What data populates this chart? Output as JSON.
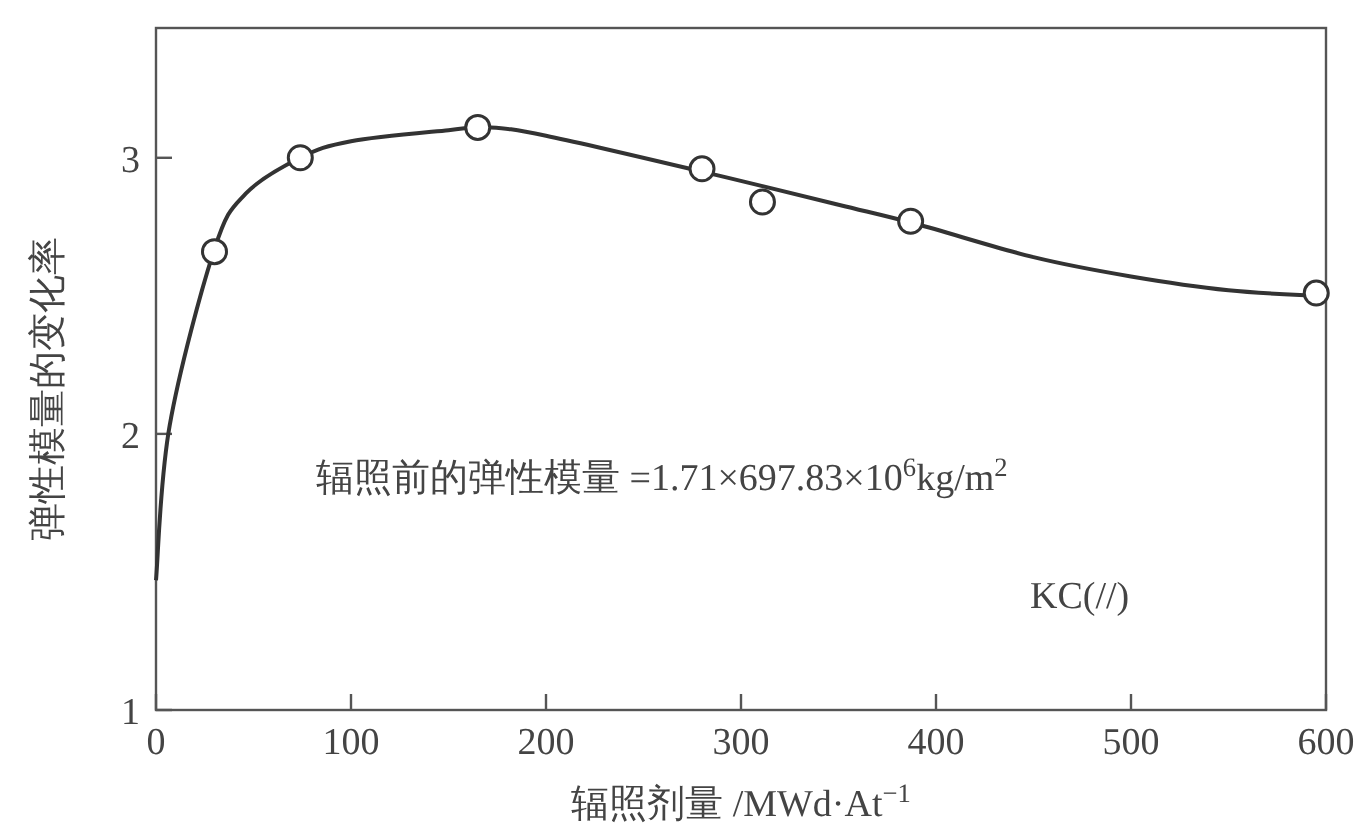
{
  "chart_data": {
    "type": "line",
    "xlabel": "辐照剂量 /MWd·At$^{−1}$",
    "ylabel": "弹性模量的变化率",
    "xlim": [
      0,
      600
    ],
    "xticks": [
      0,
      100,
      200,
      300,
      400,
      500,
      600
    ],
    "ylim": [
      1,
      3.47
    ],
    "yticks": [
      1,
      2,
      3
    ],
    "annotations": [
      "辐照前的弹性模量 =1.71×697.83×10$^{6}$kg/m$^{2}$",
      "KC(//)"
    ],
    "series": [
      {
        "color": "#333333",
        "line_style": "solid",
        "x": [
          0,
          7,
          30,
          46,
          74,
          100,
          150,
          170,
          200,
          280,
          350,
          390,
          450,
          500,
          550,
          595
        ],
        "values": [
          1.47,
          2.03,
          2.67,
          2.87,
          3.0,
          3.06,
          3.1,
          3.11,
          3.08,
          2.95,
          2.83,
          2.76,
          2.64,
          2.57,
          2.52,
          2.5
        ]
      },
      {
        "type": "scatter",
        "color": "#333333",
        "marker": "circle",
        "x": [
          30,
          74,
          165,
          280,
          311,
          387,
          595
        ],
        "values": [
          2.66,
          3.0,
          3.11,
          2.96,
          2.84,
          2.77,
          2.51
        ]
      }
    ]
  }
}
